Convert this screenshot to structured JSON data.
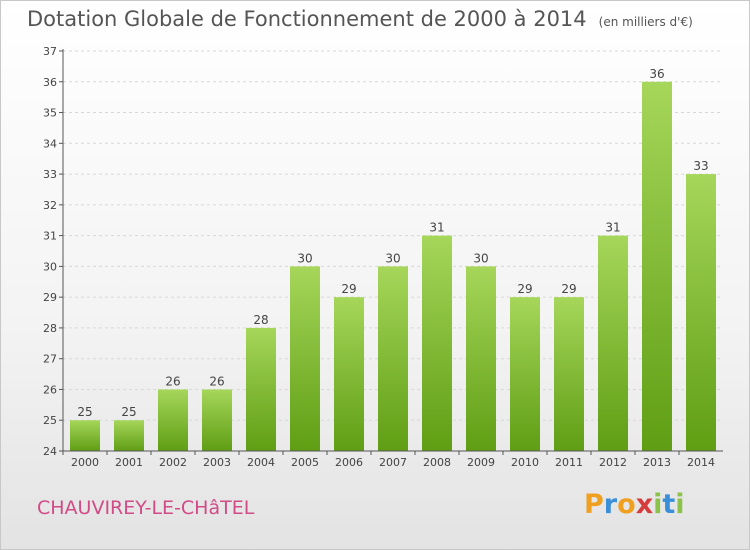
{
  "title": "Dotation Globale de Fonctionnement de 2000 à 2014",
  "subtitle": "(en milliers d'€)",
  "commune": "CHAUVIREY-LE-CHâTEL",
  "logo": {
    "text": "Proxiti",
    "letters": [
      "P",
      "r",
      "o",
      "x",
      "i",
      "t",
      "i"
    ],
    "colors": [
      "#f0a020",
      "#3a8fd8",
      "#f0a020",
      "#d63c3c",
      "#8bc34a",
      "#3a8fd8",
      "#8bc34a"
    ]
  },
  "colors": {
    "bar_top": "#a6d65a",
    "bar_bottom": "#5f9e14",
    "axis": "#555555",
    "grid": "#d8d8d8"
  },
  "chart_data": {
    "type": "bar",
    "title": "Dotation Globale de Fonctionnement de 2000 à 2014",
    "subtitle": "(en milliers d'€)",
    "categories": [
      "2000",
      "2001",
      "2002",
      "2003",
      "2004",
      "2005",
      "2006",
      "2007",
      "2008",
      "2009",
      "2010",
      "2011",
      "2012",
      "2013",
      "2014"
    ],
    "values": [
      25,
      25,
      26,
      26,
      28,
      30,
      29,
      30,
      31,
      30,
      29,
      29,
      31,
      36,
      33
    ],
    "yticks": [
      24,
      25,
      26,
      27,
      28,
      29,
      30,
      31,
      32,
      33,
      34,
      35,
      36,
      37
    ],
    "ylim": [
      24,
      37
    ],
    "grid": true,
    "data_labels": true
  }
}
